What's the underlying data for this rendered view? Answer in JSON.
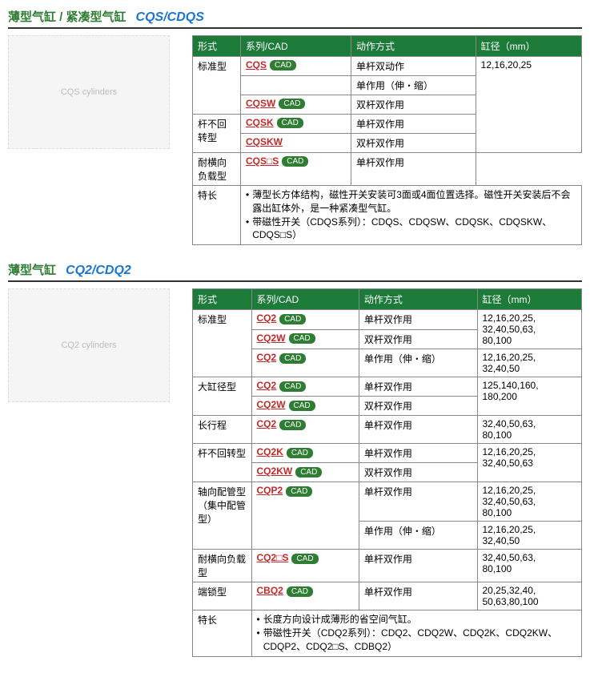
{
  "sections": [
    {
      "title_cn": "薄型气缸 / 紧凑型气缸",
      "title_code": "CQS/CDQS",
      "image_alt": "CQS cylinders",
      "header": {
        "type": "形式",
        "series": "系列/CAD",
        "action": "动作方式",
        "bore": "缸径（mm）"
      },
      "rows": [
        {
          "type": "标准型",
          "type_span": 3,
          "series": "CQS",
          "cad": true,
          "action": "单杆双动作",
          "bore": "12,16,20,25",
          "bore_span": 5
        },
        {
          "series_blank": true,
          "action": "单作用（伸・缩）"
        },
        {
          "series": "CQSW",
          "cad": true,
          "action": "双杆双作用"
        },
        {
          "type": "杆不回转型",
          "type_span": 2,
          "series": "CQSK",
          "cad": true,
          "action": "单杆双作用"
        },
        {
          "series": "CQSKW",
          "action": "双杆双作用"
        },
        {
          "type": "耐横向负载型",
          "series": "CQS□S",
          "cad": true,
          "action": "单杆双作用",
          "bore_cont": true
        }
      ],
      "features_label": "特长",
      "features": [
        "薄型长方体结构，磁性开关安装可3面或4面位置选择。磁性开关安装后不会露出缸体外，是一种紧凑型气缸。",
        "带磁性开关（CDQS系列）：CDQS、CDQSW、CDQSK、CDQSKW、CDQS□S）"
      ]
    },
    {
      "title_cn": "薄型气缸",
      "title_code": "CQ2/CDQ2",
      "image_alt": "CQ2 cylinders",
      "header": {
        "type": "形式",
        "series": "系列/CAD",
        "action": "动作方式",
        "bore": "缸径（mm）"
      },
      "rows": [
        {
          "type": "标准型",
          "type_span": 3,
          "series": "CQ2",
          "cad": true,
          "action": "单杆双作用",
          "bore": "12,16,20,25,\n32,40,50,63,\n80,100",
          "bore_span": 2
        },
        {
          "series": "CQ2W",
          "cad": true,
          "action": "双杆双作用"
        },
        {
          "series": "CQ2",
          "cad": true,
          "action": "单作用（伸・缩）",
          "bore": "12,16,20,25,\n32,40,50"
        },
        {
          "type": "大缸径型",
          "type_span": 2,
          "series": "CQ2",
          "cad": true,
          "action": "单杆双作用",
          "bore": "125,140,160,\n180,200",
          "bore_span": 2
        },
        {
          "series": "CQ2W",
          "cad": true,
          "action": "双杆双作用"
        },
        {
          "type": "长行程",
          "series": "CQ2",
          "cad": true,
          "action": "单杆双作用",
          "bore": "32,40,50,63,\n80,100"
        },
        {
          "type": "杆不回转型",
          "type_span": 2,
          "series": "CQ2K",
          "cad": true,
          "action": "单杆双作用",
          "bore": "12,16,20,25,\n32,40,50,63",
          "bore_span": 2
        },
        {
          "series": "CQ2KW",
          "cad": true,
          "action": "双杆双作用"
        },
        {
          "type": "轴向配管型\n（集中配管型）",
          "type_span": 2,
          "series": "CQP2",
          "series_span": 2,
          "cad": true,
          "action": "单杆双作用",
          "bore": "12,16,20,25,\n32,40,50,63,\n80,100"
        },
        {
          "action": "单作用（伸・缩）",
          "bore": "12,16,20,25,\n32,40,50"
        },
        {
          "type": "耐横向负载型",
          "series": "CQ2□S",
          "cad": true,
          "action": "单杆双作用",
          "bore": "32,40,50,63,\n80,100"
        },
        {
          "type": "端锁型",
          "series": "CBQ2",
          "cad": true,
          "action": "单杆双作用",
          "bore": "20,25,32,40,\n50,63,80,100"
        }
      ],
      "features_label": "特长",
      "features": [
        "长度方向设计成薄形的省空间气缸。",
        "带磁性开关（CDQ2系列）：CDQ2、CDQ2W、CDQ2K、CDQ2KW、CDQP2、CDQ2□S、CDBQ2）"
      ]
    }
  ],
  "colors": {
    "header_bg": "#1d7b3a",
    "link": "#c62828",
    "title_cn": "#2e7d32",
    "title_code": "#1976d2"
  }
}
